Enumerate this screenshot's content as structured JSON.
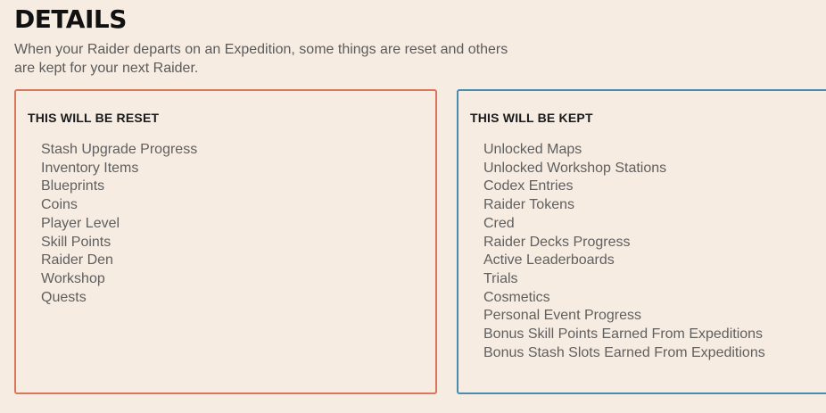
{
  "header": {
    "title": "DETAILS",
    "description": "When your Raider departs on an Expedition, some things are reset and others are kept for your next Raider."
  },
  "reset_panel": {
    "heading": "THIS WILL BE RESET",
    "items": [
      "Stash Upgrade Progress",
      "Inventory Items",
      "Blueprints",
      "Coins",
      "Player Level",
      "Skill Points",
      "Raider Den",
      "Workshop",
      "Quests"
    ]
  },
  "kept_panel": {
    "heading": "THIS WILL BE KEPT",
    "items": [
      "Unlocked Maps",
      "Unlocked Workshop Stations",
      "Codex Entries",
      "Raider Tokens",
      "Cred",
      "Raider Decks Progress",
      "Active Leaderboards",
      "Trials",
      "Cosmetics",
      "Personal Event Progress",
      "Bonus Skill Points Earned From Expeditions",
      "Bonus Stash Slots Earned From Expeditions"
    ]
  },
  "colors": {
    "background": "#f7ece2",
    "reset_border": "#d9775c",
    "kept_border": "#4a8bb0"
  }
}
